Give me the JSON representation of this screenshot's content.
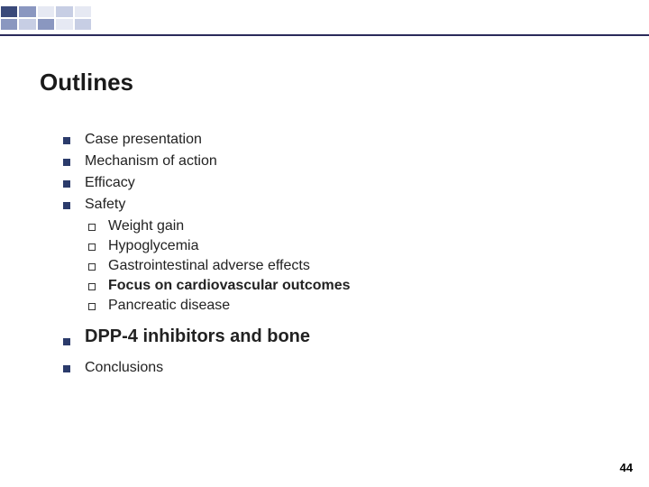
{
  "title": "Outlines",
  "items": {
    "case": "Case presentation",
    "mechanism": "Mechanism of action",
    "efficacy": "Efficacy",
    "safety": "Safety",
    "sub": {
      "weight": "Weight gain",
      "hypo": "Hypoglycemia",
      "gi": "Gastrointestinal adverse effects",
      "cardio": "Focus on cardiovascular outcomes",
      "panc": "Pancreatic disease"
    },
    "dpp4": "DPP-4 inhibitors and bone",
    "conclusions": "Conclusions"
  },
  "page_number": "44",
  "colors": {
    "accent_dark": "#3a4a7a",
    "accent_line": "#2a2a5a",
    "bullet": "#2b3b6b"
  }
}
